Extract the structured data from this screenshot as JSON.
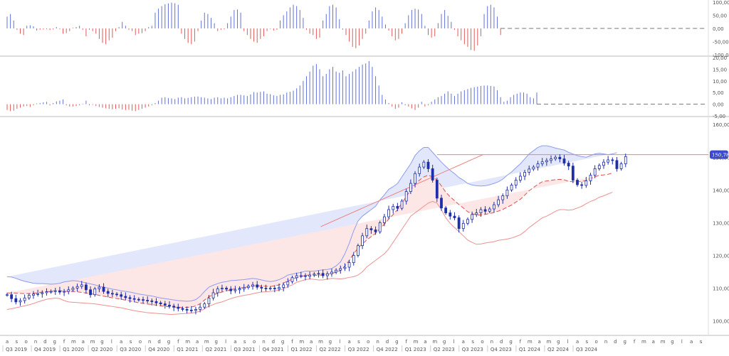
{
  "chart_data": {
    "type": "candlestick-with-indicators",
    "colors": {
      "up": "#6272d8",
      "down": "#e05a5a",
      "candle": "#1f2fa8",
      "upper_band_fill": "#e3e7fb",
      "lower_band_fill": "#fde6e6",
      "upper_band_line": "#8e9cf0",
      "lower_band_line": "#f08f8f",
      "ma_line": "#e05050",
      "trend_line": "#f07f7f",
      "price_tag": "#3a4bd0",
      "grid": "#dddddd",
      "text": "#555555"
    },
    "oscillator1": {
      "ylim": [
        -100,
        100
      ],
      "ticks": [
        "100,00",
        "50,00",
        "0,00",
        "-50,00",
        "-100,00"
      ],
      "tick_values": [
        100,
        50,
        0,
        -50,
        -100
      ],
      "values": [
        45,
        55,
        30,
        -5,
        -20,
        -25,
        10,
        12,
        8,
        -8,
        -5,
        -4,
        -3,
        -6,
        -4,
        5,
        -3,
        -20,
        -18,
        -10,
        2,
        5,
        10,
        -5,
        -30,
        -5,
        -10,
        -20,
        -40,
        -55,
        -60,
        -45,
        -35,
        -10,
        5,
        25,
        10,
        -5,
        -10,
        -25,
        -20,
        -18,
        -10,
        5,
        10,
        60,
        75,
        85,
        92,
        95,
        98,
        96,
        90,
        -20,
        -40,
        -55,
        -60,
        -50,
        -10,
        30,
        60,
        55,
        40,
        20,
        -10,
        -5,
        -3,
        20,
        45,
        70,
        72,
        60,
        -10,
        -25,
        -40,
        -50,
        -55,
        -40,
        -30,
        -10,
        -2,
        -8,
        -5,
        30,
        50,
        65,
        80,
        90,
        85,
        70,
        40,
        -5,
        -20,
        -25,
        -40,
        -35,
        30,
        55,
        85,
        90,
        80,
        35,
        -5,
        -25,
        -50,
        -70,
        -75,
        -65,
        -40,
        -20,
        30,
        65,
        80,
        70,
        45,
        15,
        -8,
        -30,
        -45,
        -40,
        -20,
        20,
        50,
        70,
        75,
        72,
        55,
        10,
        -25,
        -35,
        -30,
        20,
        55,
        70,
        48,
        25,
        -5,
        -30,
        -45,
        -60,
        -70,
        -82,
        -85,
        -65,
        -30,
        55,
        85,
        90,
        80,
        45,
        -25
      ],
      "baseline_dashed_to": "Q2 2024"
    },
    "oscillator2": {
      "ylim": [
        -5,
        20
      ],
      "ticks": [
        "20,00",
        "15,00",
        "10,00",
        "5,00",
        "0,00",
        "-5,00"
      ],
      "tick_values": [
        20,
        15,
        10,
        5,
        0,
        -5
      ],
      "values": [
        -2.5,
        -3,
        -2.8,
        -2,
        -1.5,
        -1,
        -0.8,
        -1.2,
        -0.5,
        0.3,
        0.5,
        0.8,
        1,
        -0.5,
        0.5,
        1.2,
        1.5,
        2,
        -0.5,
        -1,
        -1,
        -0.8,
        -0.5,
        0.2,
        1.5,
        -0.5,
        -0.3,
        -0.8,
        -1.2,
        -1.5,
        -1.8,
        -2,
        -2.2,
        -2,
        -1.8,
        -2.3,
        -2.5,
        -2.4,
        -2.8,
        -3,
        -2.5,
        -2,
        -1.5,
        -1,
        -0.5,
        0.5,
        1.5,
        2.8,
        3,
        2.6,
        2.5,
        2.2,
        2.8,
        3,
        2.5,
        2.7,
        3,
        3.2,
        3.3,
        3,
        2.8,
        2.5,
        2.2,
        2.8,
        3,
        2.5,
        2.8,
        2.5,
        3,
        3.5,
        4,
        4,
        3.8,
        3.5,
        4.2,
        5.2,
        5,
        5.3,
        5.5,
        4.5,
        4.3,
        3.8,
        3.5,
        4,
        4.2,
        5,
        5.3,
        5.8,
        6.8,
        8,
        10,
        12,
        14,
        16.5,
        17.2,
        15,
        12,
        13,
        15,
        16,
        14,
        13.5,
        14.5,
        12,
        13,
        14,
        15,
        16,
        17,
        17.5,
        18.5,
        16,
        12,
        8,
        4,
        2,
        0.5,
        -1,
        -2,
        -1.5,
        0.8,
        -0.5,
        -1,
        -1.8,
        -2.5,
        -1.5,
        1,
        -1,
        -0.5,
        1,
        2,
        3,
        3.5,
        4.5,
        5.5,
        4.5,
        3.5,
        4.5,
        5.5,
        6,
        6.5,
        7,
        7.3,
        7.5,
        7.8,
        8,
        8,
        7.8,
        7.6,
        6,
        3,
        1,
        1.5,
        3,
        4,
        4.5,
        5,
        5,
        4.5,
        3,
        2.5,
        5
      ],
      "baseline_dashed_to": "Q2 2024"
    },
    "price": {
      "ylim": [
        96,
        162
      ],
      "ticks": [
        "160,00",
        "150,00",
        "140,00",
        "130,00",
        "120,00",
        "110,00",
        "100,00"
      ],
      "tick_values": [
        160,
        150,
        140,
        130,
        120,
        110,
        100
      ],
      "last_price_label": "150,78",
      "last_price": 150.78,
      "resistance": 150.8,
      "trendline": {
        "from": {
          "week": 143,
          "price": 128.8
        },
        "to": {
          "week": 217,
          "price": 150.8
        }
      },
      "candles_sampled_every_weeks": 2,
      "close": [
        108,
        106.8,
        105.8,
        106.2,
        107,
        107.8,
        108.2,
        108.3,
        108.6,
        108.9,
        109,
        109.2,
        108.8,
        109,
        109.5,
        110,
        110.5,
        111,
        109.5,
        108,
        109.8,
        110.3,
        109,
        108.4,
        108.2,
        108,
        107.5,
        107.1,
        106.8,
        106.6,
        106.5,
        106.3,
        106.1,
        105.9,
        105.5,
        105.2,
        104.8,
        104.5,
        104.2,
        103.8,
        103.5,
        103.3,
        103.2,
        103.5,
        104.2,
        105.2,
        107,
        108.6,
        109.8,
        110,
        109.7,
        109.2,
        109.5,
        109.8,
        110.2,
        110.6,
        111,
        110.3,
        110,
        109.9,
        110,
        109.8,
        110.2,
        111,
        112,
        113.2,
        113.8,
        113.8,
        113.6,
        114,
        114.3,
        114.5,
        113.8,
        114.4,
        114.9,
        115.5,
        116,
        116.4,
        117.8,
        120,
        123,
        126,
        128.2,
        127.8,
        127.2,
        130,
        131.8,
        134,
        135,
        134.4,
        136.6,
        139.5,
        142,
        145,
        147,
        148.5,
        146.5,
        143,
        137.5,
        134.5,
        133,
        132,
        131.5,
        128.2,
        129.8,
        131,
        132.5,
        133,
        134,
        133.5,
        134.2,
        135.5,
        137,
        138.2,
        140,
        141.5,
        143,
        144.2,
        145.4,
        146.4,
        147,
        148,
        148.6,
        149,
        149.5,
        150,
        149.5,
        148.2,
        147.3,
        143,
        141.6,
        141.4,
        142.8,
        144.5,
        146.5,
        147.5,
        148.5,
        149.2,
        149,
        146.5,
        148,
        150.2
      ],
      "upper_band": [
        113.5,
        113.4,
        113,
        112.5,
        112.1,
        111.8,
        111.5,
        111.4,
        111.4,
        111.3,
        111.2,
        111.3,
        111.5,
        111.9,
        112.1,
        112.3,
        112.2,
        111.9,
        111.6,
        111.3,
        111,
        110.6,
        110.3,
        110,
        109.7,
        109.5,
        109.2,
        109,
        108.8,
        108.5,
        108.2,
        108,
        107.8,
        107.6,
        107.3,
        107,
        106.8,
        106.6,
        106.4,
        106.2,
        106.1,
        106,
        106.1,
        106.5,
        107.5,
        109,
        110.3,
        110.9,
        111.4,
        111.8,
        112,
        112.3,
        112.4,
        112.5,
        112.6,
        112.8,
        113,
        112.8,
        112.5,
        112.2,
        112,
        112.2,
        112.6,
        113.2,
        114,
        114.3,
        114.6,
        114.8,
        115.2,
        115.2,
        115.2,
        115.4,
        115.6,
        115.7,
        116,
        116.8,
        118,
        120.5,
        123.7,
        127.5,
        130.5,
        132,
        133,
        134,
        135,
        137,
        138.5,
        140.2,
        141,
        142,
        144,
        146,
        148,
        150.5,
        152,
        153,
        153,
        151.5,
        150,
        148.5,
        147.2,
        146,
        145,
        143.8,
        143,
        142,
        141.5,
        141.3,
        141.2,
        141.3,
        141.6,
        142,
        142.5,
        143.3,
        144.5,
        145.5,
        146.8,
        148,
        149.5,
        151,
        152,
        153,
        153.5,
        153.5,
        153.2,
        152.8,
        152.5,
        152.2,
        151.5,
        151,
        150.5,
        150.2,
        150,
        150.5,
        151,
        151.2,
        151,
        150.8,
        151,
        151.4
      ],
      "lower_band": [
        103.5,
        103.7,
        104,
        104.3,
        104.6,
        104.9,
        105.3,
        105.8,
        106.2,
        106.6,
        106.8,
        107,
        106.8,
        106.2,
        105.8,
        105.7,
        105.6,
        105.5,
        105.4,
        105.3,
        105.2,
        105,
        104.8,
        104.6,
        104.4,
        104.2,
        104,
        103.7,
        103.4,
        103.1,
        102.9,
        102.7,
        102.5,
        102.4,
        102.3,
        102.2,
        102.1,
        102,
        102,
        102.1,
        102.2,
        102.3,
        102.4,
        102.6,
        103,
        103.7,
        104.5,
        105,
        105.5,
        105.8,
        106.3,
        106.8,
        107.2,
        107.5,
        107.8,
        108,
        108.3,
        108.6,
        108.8,
        108.9,
        109,
        109.2,
        109.4,
        109.8,
        110.5,
        111,
        111.8,
        112.2,
        112.6,
        112.8,
        112.7,
        112.5,
        112.5,
        112.8,
        113,
        112.9,
        112.8,
        113,
        113.3,
        113.5,
        114,
        115,
        116.5,
        117.5,
        118.5,
        119.5,
        120.5,
        122,
        124,
        126,
        128,
        130,
        132,
        133,
        134,
        135,
        136,
        136.5,
        136,
        134,
        131.5,
        129.8,
        128.5,
        127.3,
        126,
        124.7,
        124,
        123.4,
        123.5,
        123.8,
        124,
        124.2,
        124.6,
        124.8,
        125,
        125.3,
        125.8,
        126.3,
        127.3,
        128.5,
        129.5,
        130.5,
        131.5,
        132,
        132.7,
        133.5,
        134,
        134,
        133.8,
        134,
        134.5,
        135,
        135.8,
        136.5,
        137,
        137.8,
        138.2,
        138.8,
        139.3
      ]
    },
    "time_axis": {
      "month_labels": [
        "a",
        "s",
        "o",
        "n",
        "d",
        "g",
        "f",
        "m",
        "a",
        "m",
        "g",
        "l",
        "a",
        "s",
        "o",
        "n",
        "d",
        "g",
        "f",
        "m",
        "a",
        "m",
        "g",
        "l",
        "a",
        "s",
        "o",
        "n",
        "d",
        "g",
        "f",
        "m",
        "a",
        "m",
        "g",
        "l",
        "a",
        "s",
        "o",
        "n",
        "d",
        "g",
        "f",
        "m",
        "a",
        "m",
        "g",
        "l",
        "a",
        "s",
        "o",
        "n",
        "d",
        "g",
        "f",
        "m",
        "a",
        "m",
        "g",
        "l",
        "a",
        "s",
        "o",
        "n",
        "d",
        "g",
        "f",
        "m",
        "a",
        "m",
        "g",
        "l",
        "a",
        "s",
        "o"
      ],
      "quarter_labels": [
        "Q3 2019",
        "Q4 2019",
        "Q1 2020",
        "Q2 2020",
        "Q3 2020",
        "Q4 2020",
        "Q1 2021",
        "Q2 2021",
        "Q3 2021",
        "Q4 2021",
        "Q1 2022",
        "Q2 2022",
        "Q3 2022",
        "Q4 2022",
        "Q1 2023",
        "Q2 2023",
        "Q3 2023",
        "Q4 2023",
        "Q1 2024",
        "Q2 2024",
        "Q3 2024"
      ]
    }
  }
}
